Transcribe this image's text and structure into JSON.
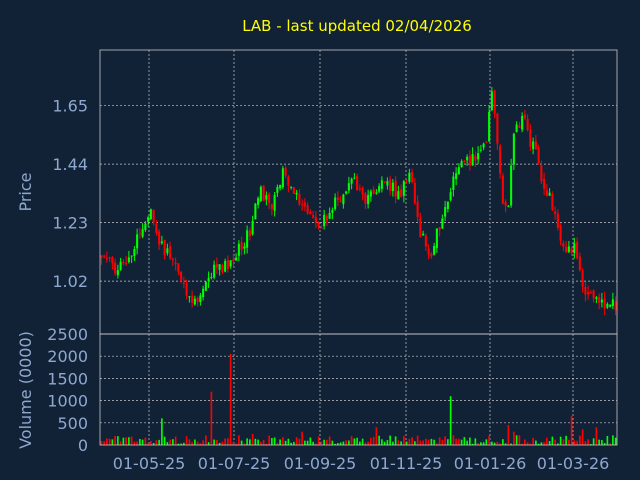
{
  "colors": {
    "background": "#112236",
    "grid": "#c8c8c8",
    "axis_text": "#8fa8cf",
    "title": "#ffff00",
    "up": "#00ff00",
    "down": "#ff0000"
  },
  "chart_data": [
    {
      "type": "candlestick",
      "title": "LAB - last updated 02/04/2026",
      "ylabel": "Price",
      "ylim": [
        0.83,
        1.85
      ],
      "yticks": [
        "1.02",
        "1.23",
        "1.44",
        "1.65"
      ],
      "x_tick_labels": [
        "01-05-25",
        "01-07-25",
        "01-09-25",
        "01-11-25",
        "01-01-26",
        "01-03-26"
      ],
      "grid": true,
      "series": [
        {
          "close_path": [
            [
              0,
              1.12
            ],
            [
              6,
              1.06
            ],
            [
              12,
              1.15
            ],
            [
              18,
              1.27
            ],
            [
              22,
              1.14
            ],
            [
              26,
              1.1
            ],
            [
              30,
              1.0
            ],
            [
              34,
              0.95
            ],
            [
              40,
              1.05
            ],
            [
              48,
              1.1
            ],
            [
              54,
              1.2
            ],
            [
              58,
              1.35
            ],
            [
              62,
              1.28
            ],
            [
              66,
              1.4
            ],
            [
              70,
              1.32
            ],
            [
              74,
              1.3
            ],
            [
              80,
              1.22
            ],
            [
              86,
              1.32
            ],
            [
              92,
              1.38
            ],
            [
              96,
              1.3
            ],
            [
              100,
              1.35
            ],
            [
              104,
              1.38
            ],
            [
              108,
              1.32
            ],
            [
              112,
              1.42
            ],
            [
              116,
              1.2
            ],
            [
              120,
              1.12
            ],
            [
              124,
              1.25
            ],
            [
              128,
              1.38
            ],
            [
              132,
              1.45
            ],
            [
              136,
              1.46
            ],
            [
              140,
              1.52
            ],
            [
              142,
              1.72
            ],
            [
              144,
              1.5
            ],
            [
              146,
              1.3
            ],
            [
              148,
              1.28
            ],
            [
              150,
              1.55
            ],
            [
              154,
              1.62
            ],
            [
              156,
              1.52
            ],
            [
              158,
              1.5
            ],
            [
              160,
              1.4
            ],
            [
              164,
              1.3
            ],
            [
              166,
              1.2
            ],
            [
              168,
              1.13
            ],
            [
              172,
              1.15
            ],
            [
              174,
              1.05
            ],
            [
              176,
              0.98
            ],
            [
              180,
              0.96
            ],
            [
              184,
              0.94
            ],
            [
              186,
              0.93
            ]
          ]
        }
      ]
    },
    {
      "type": "bar",
      "ylabel": "Volume (0000)",
      "ylim": [
        0,
        2500
      ],
      "yticks": [
        "0",
        "500",
        "1000",
        "1500",
        "2000",
        "2500"
      ],
      "baseline_max": 200,
      "spikes": [
        [
          22,
          600
        ],
        [
          40,
          1200
        ],
        [
          47,
          2050
        ],
        [
          55,
          250
        ],
        [
          73,
          300
        ],
        [
          100,
          400
        ],
        [
          127,
          1100
        ],
        [
          148,
          450
        ],
        [
          150,
          300
        ],
        [
          171,
          650
        ],
        [
          175,
          350
        ],
        [
          180,
          400
        ]
      ]
    }
  ]
}
